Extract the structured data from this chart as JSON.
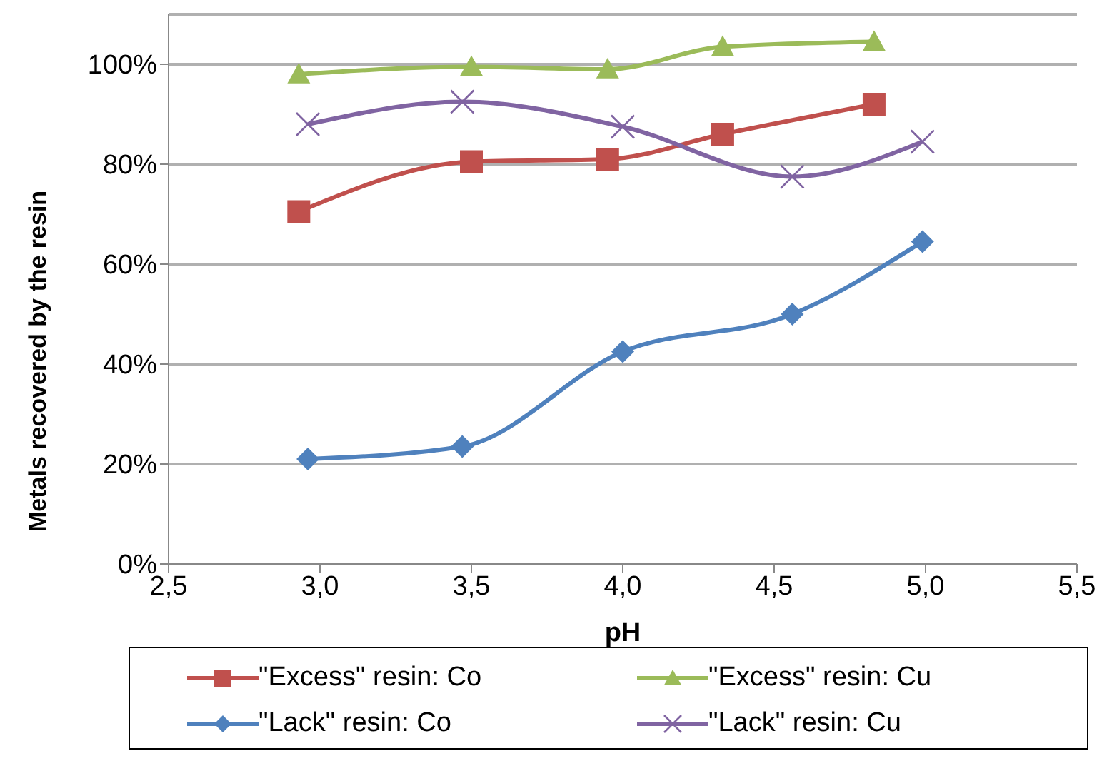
{
  "chart_data": {
    "type": "line",
    "xlabel": "pH",
    "ylabel": "Metals recovered by the resin",
    "xlim": [
      2.5,
      5.5
    ],
    "xticks": [
      {
        "value": 2.5,
        "label": "2,5"
      },
      {
        "value": 3.0,
        "label": "3,0"
      },
      {
        "value": 3.5,
        "label": "3,5"
      },
      {
        "value": 4.0,
        "label": "4,0"
      },
      {
        "value": 4.5,
        "label": "4,5"
      },
      {
        "value": 5.0,
        "label": "5,0"
      },
      {
        "value": 5.5,
        "label": "5,5"
      }
    ],
    "ylim": [
      0,
      110
    ],
    "yticks": [
      {
        "value": 0,
        "label": "0%"
      },
      {
        "value": 20,
        "label": "20%"
      },
      {
        "value": 40,
        "label": "40%"
      },
      {
        "value": 60,
        "label": "60%"
      },
      {
        "value": 80,
        "label": "80%"
      },
      {
        "value": 100,
        "label": "100%"
      }
    ],
    "grid": "y",
    "legend": "bottom",
    "series": [
      {
        "name": "\"Excess\" resin: Co",
        "color": "#c0504d",
        "marker": "square",
        "x": [
          2.93,
          3.5,
          3.95,
          4.33,
          4.83
        ],
        "values": [
          70.5,
          80.5,
          81,
          86,
          92
        ]
      },
      {
        "name": "\"Excess\" resin: Cu",
        "color": "#9bbb59",
        "marker": "triangle",
        "x": [
          2.93,
          3.5,
          3.95,
          4.33,
          4.83
        ],
        "values": [
          98,
          99.5,
          99,
          103.5,
          104.5
        ]
      },
      {
        "name": "\"Lack\" resin: Co",
        "color": "#4f81bd",
        "marker": "diamond",
        "x": [
          2.96,
          3.47,
          4.0,
          4.56,
          4.99
        ],
        "values": [
          21,
          23.5,
          42.5,
          50,
          64.5
        ]
      },
      {
        "name": "\"Lack\" resin: Cu",
        "color": "#8064a2",
        "marker": "cross",
        "x": [
          2.96,
          3.47,
          4.0,
          4.56,
          4.99
        ],
        "values": [
          88,
          92.5,
          87.5,
          77.5,
          84.5
        ]
      }
    ]
  }
}
